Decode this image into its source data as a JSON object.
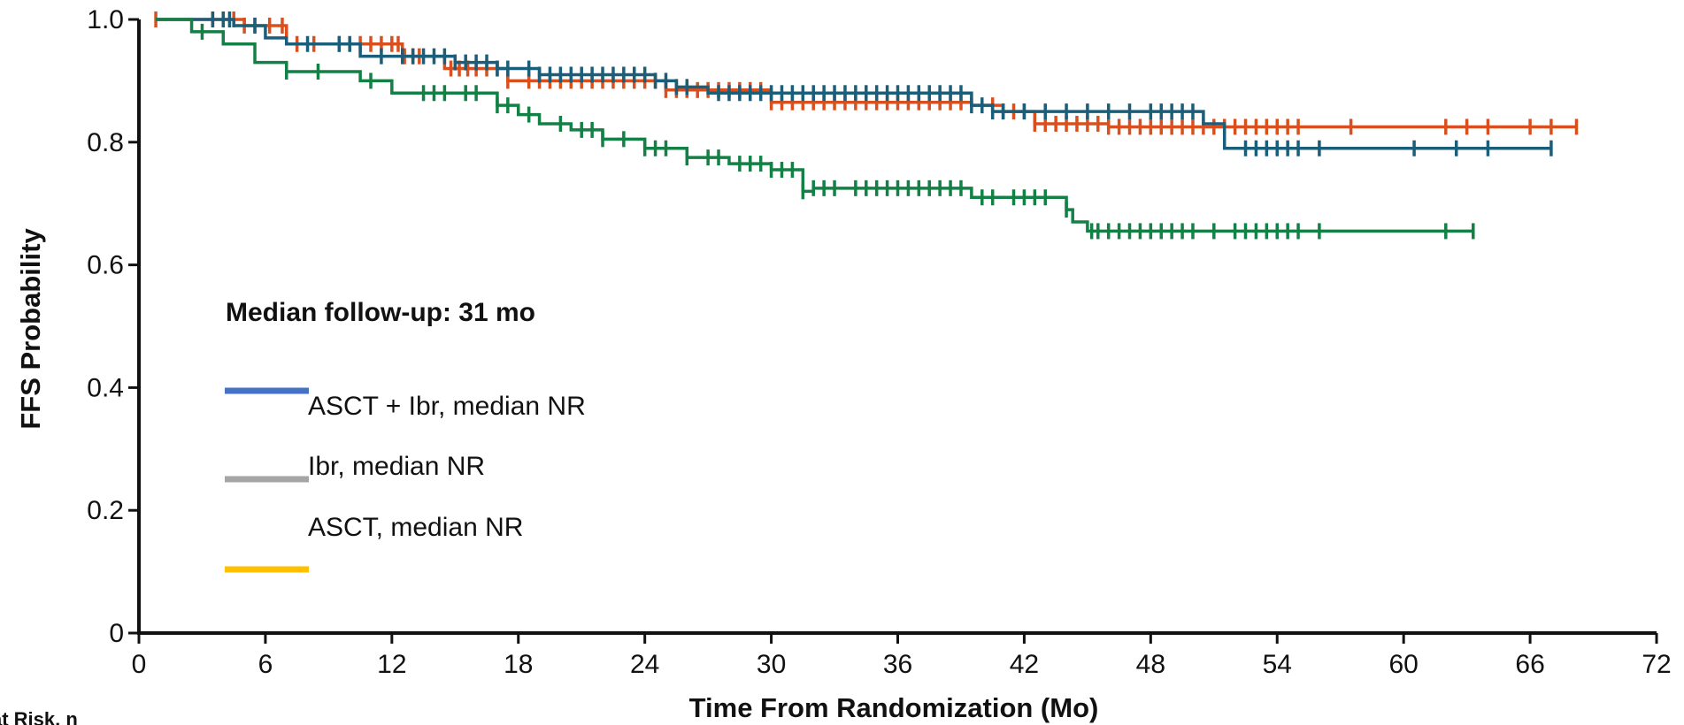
{
  "chart_data": {
    "type": "line",
    "xlabel": "Time From Randomization (Mo)",
    "ylabel": "FFS Probability",
    "xlim": [
      0,
      72
    ],
    "ylim": [
      0,
      1.0
    ],
    "x_ticks": [
      0,
      6,
      12,
      18,
      24,
      30,
      36,
      42,
      48,
      54,
      60,
      66,
      72
    ],
    "y_ticks": [
      {
        "value": 0,
        "label": "0"
      },
      {
        "value": 0.2,
        "label": "0.2"
      },
      {
        "value": 0.4,
        "label": "0.4"
      },
      {
        "value": 0.6,
        "label": "0.6"
      },
      {
        "value": 0.8,
        "label": "0.8"
      },
      {
        "value": 1.0,
        "label": "1.0"
      }
    ],
    "grid": false,
    "annotation": "Median follow-up: 31 mo",
    "at_risk_label": "at Risk, n",
    "legend": [
      {
        "label": "ASCT + Ibr, median NR",
        "color": "#4472C4"
      },
      {
        "label": "Ibr, median NR",
        "color": "#A5A5A5"
      },
      {
        "label": "ASCT, median NR",
        "color": "#FFC000"
      }
    ],
    "series": [
      {
        "color": "#D9501E",
        "steps": [
          [
            0.8,
            1.0
          ],
          [
            5.0,
            0.99
          ],
          [
            7.0,
            0.96
          ],
          [
            12.5,
            0.94
          ],
          [
            14.5,
            0.92
          ],
          [
            17.5,
            0.9
          ],
          [
            25,
            0.885
          ],
          [
            30,
            0.865
          ],
          [
            39.5,
            0.86
          ],
          [
            41,
            0.85
          ],
          [
            42.5,
            0.83
          ],
          [
            43.5,
            0.83
          ],
          [
            46,
            0.825
          ],
          [
            68.2,
            0.825
          ]
        ],
        "censor": [
          0.8,
          3.5,
          4,
          4.5,
          5,
          5.5,
          6.2,
          6.8,
          7.5,
          8.3,
          9.5,
          10.5,
          11,
          11.5,
          12,
          12.3,
          12.6,
          13,
          13.3,
          14.8,
          15.2,
          15.6,
          16,
          16.5,
          17,
          17.5,
          18.5,
          19,
          19.5,
          20,
          20.5,
          21,
          21.5,
          22,
          22.5,
          23,
          23.5,
          24,
          24.5,
          25,
          25.5,
          26,
          26.5,
          27,
          27.5,
          28,
          28.5,
          29,
          29.5,
          30,
          30.5,
          31,
          31.5,
          32,
          32.5,
          33,
          33.5,
          34,
          34.5,
          35,
          35.5,
          36,
          36.5,
          37,
          37.5,
          38,
          38.5,
          39,
          40.5,
          41,
          41.5,
          42,
          42.5,
          43,
          43.5,
          44,
          44.5,
          45,
          45.5,
          46,
          46.5,
          47,
          47.5,
          48,
          48.5,
          49,
          49.5,
          50,
          50.5,
          51,
          51.5,
          52,
          52.5,
          53,
          53.5,
          54,
          54.5,
          55,
          57.5,
          62,
          63,
          64,
          66,
          67,
          68.2
        ]
      },
      {
        "color": "#1B5E7A",
        "steps": [
          [
            0.8,
            1.0
          ],
          [
            4.5,
            0.99
          ],
          [
            6.0,
            0.97
          ],
          [
            7.0,
            0.96
          ],
          [
            10.5,
            0.94
          ],
          [
            15,
            0.93
          ],
          [
            17,
            0.92
          ],
          [
            19,
            0.91
          ],
          [
            24.5,
            0.9
          ],
          [
            25.5,
            0.89
          ],
          [
            27,
            0.88
          ],
          [
            39,
            0.88
          ],
          [
            39.5,
            0.86
          ],
          [
            40.5,
            0.85
          ],
          [
            50,
            0.85
          ],
          [
            50.5,
            0.83
          ],
          [
            51.5,
            0.79
          ],
          [
            67,
            0.79
          ]
        ],
        "censor": [
          3.5,
          4,
          4.3,
          5.5,
          8,
          9.5,
          10,
          11.5,
          12.5,
          13,
          13.5,
          14,
          14.5,
          15,
          15.5,
          16,
          16.5,
          17,
          17.5,
          18.5,
          19,
          19.5,
          20,
          20.5,
          21,
          21.5,
          22,
          22.5,
          23,
          23.5,
          24,
          24.5,
          25,
          25.5,
          26,
          27.5,
          28,
          28.5,
          29,
          29.5,
          30,
          30.5,
          31,
          31.5,
          32,
          32.5,
          33,
          33.5,
          34,
          34.5,
          35,
          35.5,
          36,
          36.5,
          37,
          37.5,
          38,
          38.5,
          39,
          39.5,
          40,
          40.5,
          41,
          42,
          43,
          44,
          45,
          46,
          47,
          48,
          48.5,
          49,
          49.5,
          50,
          52.5,
          53,
          53.5,
          54,
          54.5,
          55,
          56,
          60.5,
          62.5,
          64,
          67
        ]
      },
      {
        "color": "#138045",
        "steps": [
          [
            0.8,
            1.0
          ],
          [
            2.5,
            0.98
          ],
          [
            4.0,
            0.96
          ],
          [
            5.5,
            0.93
          ],
          [
            7.0,
            0.915
          ],
          [
            10.5,
            0.9
          ],
          [
            12,
            0.88
          ],
          [
            17,
            0.86
          ],
          [
            18,
            0.845
          ],
          [
            19,
            0.83
          ],
          [
            20.5,
            0.82
          ],
          [
            22,
            0.805
          ],
          [
            24,
            0.79
          ],
          [
            26,
            0.775
          ],
          [
            28,
            0.765
          ],
          [
            30,
            0.755
          ],
          [
            31.5,
            0.72
          ],
          [
            32,
            0.725
          ],
          [
            39.5,
            0.71
          ],
          [
            44,
            0.69
          ],
          [
            44.3,
            0.67
          ],
          [
            45,
            0.655
          ],
          [
            63.3,
            0.655
          ]
        ],
        "censor": [
          3,
          7,
          8.5,
          11,
          13.5,
          14,
          14.5,
          15.5,
          16,
          17,
          17.5,
          18.5,
          20,
          21,
          21.5,
          22,
          23,
          24,
          24.5,
          25,
          26,
          27,
          27.5,
          28.5,
          29,
          29.5,
          30,
          30.5,
          31,
          31.5,
          32,
          32.5,
          33,
          34,
          34.5,
          35,
          35.5,
          36,
          36.5,
          37,
          37.5,
          38,
          38.5,
          39,
          40,
          40.5,
          41.5,
          42,
          42.5,
          43,
          44,
          45.2,
          45.5,
          46,
          46.5,
          47,
          47.5,
          48,
          48.5,
          49,
          49.5,
          50,
          51,
          52,
          52.5,
          53,
          53.5,
          54,
          54.5,
          55,
          56,
          62,
          63.3
        ]
      }
    ]
  }
}
